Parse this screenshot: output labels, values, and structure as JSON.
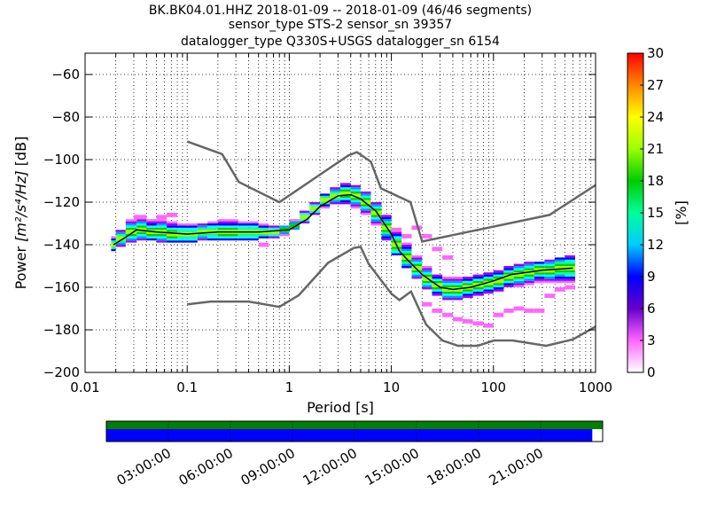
{
  "chart_data": {
    "type": "heatmap",
    "title_lines": [
      "BK.BK04.01.HHZ   2018-01-09 -- 2018-01-09  (46/46 segments)",
      "sensor_type STS-2 sensor_sn 39357",
      "datalogger_type Q330S+USGS datalogger_sn 6154"
    ],
    "xlabel": "Period [s]",
    "ylabel_prefix": "Power ",
    "ylabel_units": "[m²/s⁴/Hz]",
    "ylabel_suffix": " [dB]",
    "x_scale": "log",
    "xlim": [
      0.01,
      1000
    ],
    "ylim": [
      -200,
      -50
    ],
    "x_ticks": [
      0.01,
      0.1,
      1,
      10,
      100,
      1000
    ],
    "x_tick_labels": [
      "0.01",
      "0.1",
      "1",
      "10",
      "100",
      "1000"
    ],
    "y_ticks": [
      -200,
      -180,
      -160,
      -140,
      -120,
      -100,
      -80,
      -60
    ],
    "y_tick_labels": [
      "−200",
      "−180",
      "−160",
      "−140",
      "−120",
      "−100",
      "−80",
      "−60"
    ],
    "grid": "dotted",
    "colorbar": {
      "label": "[%]",
      "range": [
        0,
        30
      ],
      "ticks": [
        0,
        3,
        6,
        9,
        12,
        15,
        18,
        21,
        24,
        27,
        30
      ],
      "tick_labels": [
        "0",
        "3",
        "6",
        "9",
        "12",
        "15",
        "18",
        "21",
        "24",
        "27",
        "30"
      ]
    },
    "noise_model_high": [
      [
        0.1,
        -91.5
      ],
      [
        0.22,
        -97.4
      ],
      [
        0.32,
        -110.5
      ],
      [
        0.8,
        -120
      ],
      [
        3.8,
        -98
      ],
      [
        4.6,
        -96.5
      ],
      [
        6.3,
        -101
      ],
      [
        7.9,
        -113.5
      ],
      [
        15.4,
        -120
      ],
      [
        20,
        -138.5
      ],
      [
        354,
        -126
      ],
      [
        1000,
        -112
      ]
    ],
    "noise_model_low": [
      [
        0.1,
        -168
      ],
      [
        0.17,
        -166.7
      ],
      [
        0.4,
        -166.7
      ],
      [
        0.8,
        -169.2
      ],
      [
        1.24,
        -163.7
      ],
      [
        2.4,
        -148.5
      ],
      [
        4.3,
        -141.5
      ],
      [
        5,
        -141
      ],
      [
        6,
        -149
      ],
      [
        10,
        -163
      ],
      [
        12,
        -166
      ],
      [
        15.6,
        -162
      ],
      [
        21.9,
        -177.5
      ],
      [
        31.6,
        -185
      ],
      [
        45,
        -187.5
      ],
      [
        70,
        -187.5
      ],
      [
        101,
        -185
      ],
      [
        154,
        -185
      ],
      [
        328,
        -187.5
      ],
      [
        600,
        -184.5
      ],
      [
        1000,
        -178.5
      ]
    ],
    "mode_curve": [
      [
        0.019,
        -140
      ],
      [
        0.025,
        -136.5
      ],
      [
        0.032,
        -133
      ],
      [
        0.05,
        -134
      ],
      [
        0.1,
        -135
      ],
      [
        0.2,
        -134
      ],
      [
        0.5,
        -134
      ],
      [
        1,
        -133
      ],
      [
        1.5,
        -128
      ],
      [
        2,
        -122
      ],
      [
        3,
        -117
      ],
      [
        4,
        -116.5
      ],
      [
        5,
        -118.5
      ],
      [
        7,
        -124
      ],
      [
        10,
        -135
      ],
      [
        12,
        -143
      ],
      [
        15,
        -148
      ],
      [
        20,
        -154
      ],
      [
        30,
        -160
      ],
      [
        40,
        -161
      ],
      [
        60,
        -160
      ],
      [
        100,
        -157
      ],
      [
        150,
        -154
      ],
      [
        300,
        -152
      ],
      [
        600,
        -151
      ]
    ],
    "pdf_band": [
      {
        "x": [
          0.018,
          0.02
        ],
        "y": [
          -143,
          -136
        ],
        "peak": -140
      },
      {
        "x": [
          0.02,
          0.025
        ],
        "y": [
          -141,
          -133
        ],
        "peak": -137
      },
      {
        "x": [
          0.025,
          0.032
        ],
        "y": [
          -139,
          -128
        ],
        "peak": -134
      },
      {
        "x": [
          0.032,
          0.04
        ],
        "y": [
          -138,
          -127
        ],
        "peak": -133
      },
      {
        "x": [
          0.04,
          0.05
        ],
        "y": [
          -138,
          -128
        ],
        "peak": -134
      },
      {
        "x": [
          0.05,
          0.063
        ],
        "y": [
          -139,
          -128
        ],
        "peak": -134
      },
      {
        "x": [
          0.063,
          0.08
        ],
        "y": [
          -139,
          -129
        ],
        "peak": -135
      },
      {
        "x": [
          0.08,
          0.1
        ],
        "y": [
          -139,
          -130
        ],
        "peak": -135
      },
      {
        "x": [
          0.1,
          0.126
        ],
        "y": [
          -139,
          -130
        ],
        "peak": -135
      },
      {
        "x": [
          0.126,
          0.158
        ],
        "y": [
          -138,
          -130
        ],
        "peak": -134
      },
      {
        "x": [
          0.158,
          0.2
        ],
        "y": [
          -138,
          -129
        ],
        "peak": -134
      },
      {
        "x": [
          0.2,
          0.25
        ],
        "y": [
          -138,
          -128
        ],
        "peak": -134
      },
      {
        "x": [
          0.25,
          0.316
        ],
        "y": [
          -138,
          -128
        ],
        "peak": -134
      },
      {
        "x": [
          0.316,
          0.4
        ],
        "y": [
          -138,
          -129
        ],
        "peak": -134
      },
      {
        "x": [
          0.4,
          0.5
        ],
        "y": [
          -138,
          -129
        ],
        "peak": -134
      },
      {
        "x": [
          0.5,
          0.63
        ],
        "y": [
          -137,
          -130
        ],
        "peak": -134
      },
      {
        "x": [
          0.63,
          0.8
        ],
        "y": [
          -137,
          -131
        ],
        "peak": -134
      },
      {
        "x": [
          0.8,
          1.0
        ],
        "y": [
          -136,
          -131
        ],
        "peak": -133
      },
      {
        "x": [
          1.0,
          1.26
        ],
        "y": [
          -133,
          -128
        ],
        "peak": -131
      },
      {
        "x": [
          1.26,
          1.58
        ],
        "y": [
          -130,
          -124
        ],
        "peak": -127
      },
      {
        "x": [
          1.58,
          2.0
        ],
        "y": [
          -126,
          -120
        ],
        "peak": -123
      },
      {
        "x": [
          2.0,
          2.5
        ],
        "y": [
          -123,
          -116
        ],
        "peak": -119
      },
      {
        "x": [
          2.5,
          3.16
        ],
        "y": [
          -121,
          -113
        ],
        "peak": -117
      },
      {
        "x": [
          3.16,
          4.0
        ],
        "y": [
          -121,
          -111
        ],
        "peak": -116
      },
      {
        "x": [
          4.0,
          5.0
        ],
        "y": [
          -123,
          -112
        ],
        "peak": -117
      },
      {
        "x": [
          5.0,
          6.3
        ],
        "y": [
          -126,
          -115
        ],
        "peak": -120
      },
      {
        "x": [
          6.3,
          8.0
        ],
        "y": [
          -131,
          -120
        ],
        "peak": -125
      },
      {
        "x": [
          8.0,
          10.0
        ],
        "y": [
          -138,
          -126
        ],
        "peak": -132
      },
      {
        "x": [
          10.0,
          12.6
        ],
        "y": [
          -145,
          -132
        ],
        "peak": -140
      },
      {
        "x": [
          12.6,
          15.8
        ],
        "y": [
          -151,
          -139
        ],
        "peak": -146
      },
      {
        "x": [
          15.8,
          20.0
        ],
        "y": [
          -156,
          -145
        ],
        "peak": -151
      },
      {
        "x": [
          20.0,
          25.0
        ],
        "y": [
          -161,
          -150
        ],
        "peak": -156
      },
      {
        "x": [
          25.0,
          31.6
        ],
        "y": [
          -164,
          -154
        ],
        "peak": -159
      },
      {
        "x": [
          31.6,
          40.0
        ],
        "y": [
          -166,
          -155
        ],
        "peak": -161
      },
      {
        "x": [
          40.0,
          50.0
        ],
        "y": [
          -166,
          -155
        ],
        "peak": -161
      },
      {
        "x": [
          50.0,
          63.0
        ],
        "y": [
          -165,
          -155
        ],
        "peak": -160
      },
      {
        "x": [
          63.0,
          80.0
        ],
        "y": [
          -164,
          -154
        ],
        "peak": -159
      },
      {
        "x": [
          80.0,
          100.0
        ],
        "y": [
          -163,
          -153
        ],
        "peak": -158
      },
      {
        "x": [
          100.0,
          126.0
        ],
        "y": [
          -162,
          -152
        ],
        "peak": -157
      },
      {
        "x": [
          126.0,
          158.0
        ],
        "y": [
          -160,
          -150
        ],
        "peak": -155
      },
      {
        "x": [
          158.0,
          200.0
        ],
        "y": [
          -160,
          -149
        ],
        "peak": -154
      },
      {
        "x": [
          200.0,
          251.0
        ],
        "y": [
          -159,
          -148
        ],
        "peak": -153
      },
      {
        "x": [
          251.0,
          316.0
        ],
        "y": [
          -158,
          -148
        ],
        "peak": -152
      },
      {
        "x": [
          316.0,
          398.0
        ],
        "y": [
          -158,
          -147
        ],
        "peak": -152
      },
      {
        "x": [
          398.0,
          501.0
        ],
        "y": [
          -158,
          -146
        ],
        "peak": -151
      },
      {
        "x": [
          501.0,
          631.0
        ],
        "y": [
          -158,
          -145
        ],
        "peak": -151
      }
    ],
    "pdf_outliers": [
      {
        "x": [
          0.03,
          0.04
        ],
        "y": [
          -128,
          -126
        ]
      },
      {
        "x": [
          0.05,
          0.063
        ],
        "y": [
          -128,
          -126
        ]
      },
      {
        "x": [
          0.063,
          0.08
        ],
        "y": [
          -127,
          -125
        ]
      },
      {
        "x": [
          0.5,
          0.63
        ],
        "y": [
          -141,
          -139
        ]
      },
      {
        "x": [
          12.6,
          15.8
        ],
        "y": [
          -137,
          -135
        ]
      },
      {
        "x": [
          15.8,
          20.0
        ],
        "y": [
          -133,
          -131
        ]
      },
      {
        "x": [
          20.0,
          25.0
        ],
        "y": [
          -137,
          -135
        ]
      },
      {
        "x": [
          20.0,
          25.0
        ],
        "y": [
          -169,
          -167
        ]
      },
      {
        "x": [
          25.0,
          31.6
        ],
        "y": [
          -143,
          -141
        ]
      },
      {
        "x": [
          25.0,
          31.6
        ],
        "y": [
          -172,
          -170
        ]
      },
      {
        "x": [
          31.6,
          40.0
        ],
        "y": [
          -147,
          -145
        ]
      },
      {
        "x": [
          31.6,
          40.0
        ],
        "y": [
          -174,
          -172
        ]
      },
      {
        "x": [
          40.0,
          50.0
        ],
        "y": [
          -176,
          -174
        ]
      },
      {
        "x": [
          50.0,
          63.0
        ],
        "y": [
          -177,
          -175
        ]
      },
      {
        "x": [
          63.0,
          80.0
        ],
        "y": [
          -178,
          -176
        ]
      },
      {
        "x": [
          80.0,
          100.0
        ],
        "y": [
          -179,
          -177
        ]
      },
      {
        "x": [
          100.0,
          126.0
        ],
        "y": [
          -174,
          -172
        ]
      },
      {
        "x": [
          126.0,
          158.0
        ],
        "y": [
          -172,
          -170
        ]
      },
      {
        "x": [
          158.0,
          200.0
        ],
        "y": [
          -171,
          -169
        ]
      },
      {
        "x": [
          200.0,
          251.0
        ],
        "y": [
          -172,
          -170
        ]
      },
      {
        "x": [
          251.0,
          316.0
        ],
        "y": [
          -172,
          -170
        ]
      },
      {
        "x": [
          316.0,
          398.0
        ],
        "y": [
          -165,
          -163
        ]
      },
      {
        "x": [
          398.0,
          501.0
        ],
        "y": [
          -162,
          -160
        ]
      },
      {
        "x": [
          501.0,
          631.0
        ],
        "y": [
          -161,
          -159
        ]
      }
    ],
    "timeline": {
      "tick_labels": [
        "03:00:00",
        "06:00:00",
        "09:00:00",
        "12:00:00",
        "15:00:00",
        "18:00:00",
        "21:00:00"
      ],
      "tick_hours": [
        3,
        6,
        9,
        12,
        15,
        18,
        21
      ],
      "coverage_color": "#0000ff",
      "data_color": "#008000",
      "coverage_end_hours": 23.5
    }
  },
  "colors": {
    "noise_model": "#666666",
    "mode_curve": "#000000",
    "frame": "#000000"
  }
}
